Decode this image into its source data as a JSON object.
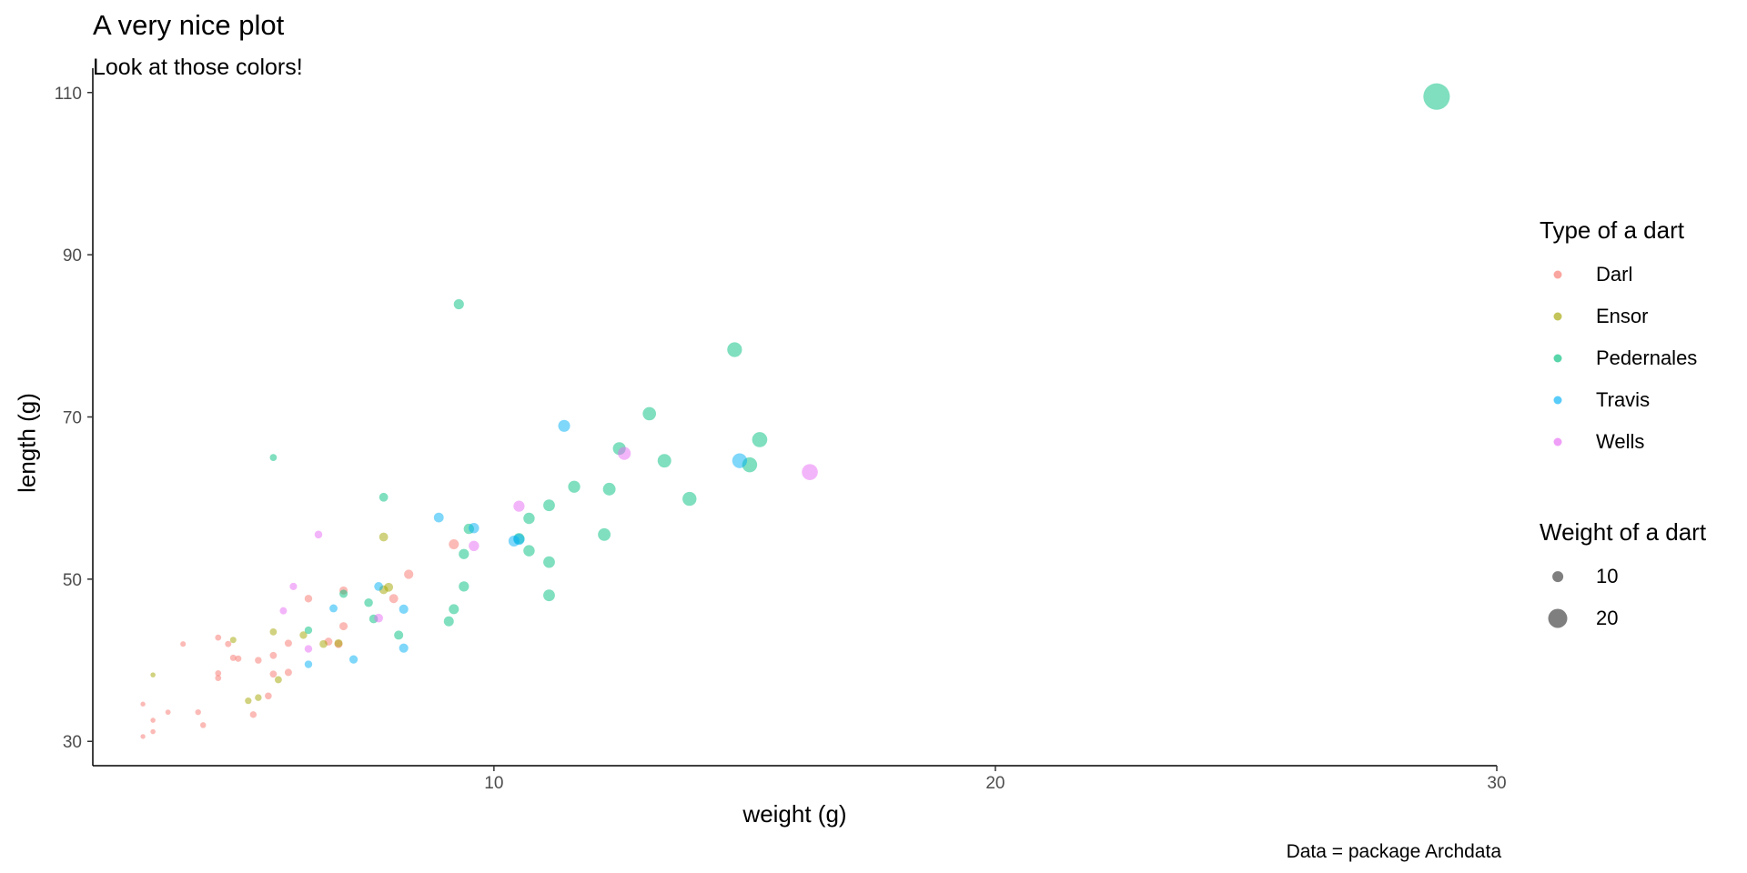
{
  "chart_data": {
    "type": "scatter",
    "title": "A very nice plot",
    "subtitle": "Look at those colors!",
    "xlabel": "weight (g)",
    "ylabel": "length (g)",
    "caption": "Data = package Archdata",
    "xlim": [
      2,
      30
    ],
    "ylim": [
      27,
      113
    ],
    "xticks": [
      10,
      20,
      30
    ],
    "yticks": [
      30,
      50,
      70,
      90,
      110
    ],
    "grid": false,
    "point_alpha": 0.5,
    "legend_placement": "right",
    "color_legend": {
      "title": "Type of a dart",
      "entries": [
        {
          "label": "Darl",
          "color": "#F8766D"
        },
        {
          "label": "Ensor",
          "color": "#A3A500"
        },
        {
          "label": "Pedernales",
          "color": "#00BF7D"
        },
        {
          "label": "Travis",
          "color": "#00B0F6"
        },
        {
          "label": "Wells",
          "color": "#E76BF3"
        }
      ]
    },
    "size_legend": {
      "title": "Weight of a dart",
      "entries": [
        {
          "label": "10",
          "value": 10
        },
        {
          "label": "20",
          "value": 20
        }
      ]
    },
    "series": [
      {
        "name": "Darl",
        "color": "#F8766D",
        "points": [
          [
            3.0,
            30.6
          ],
          [
            3.0,
            34.6
          ],
          [
            3.2,
            31.2
          ],
          [
            3.2,
            32.6
          ],
          [
            3.5,
            33.6
          ],
          [
            3.8,
            42.0
          ],
          [
            4.1,
            33.6
          ],
          [
            4.2,
            32.0
          ],
          [
            4.5,
            37.8
          ],
          [
            4.5,
            38.4
          ],
          [
            4.5,
            42.8
          ],
          [
            4.7,
            42.0
          ],
          [
            4.8,
            40.3
          ],
          [
            4.9,
            40.2
          ],
          [
            5.2,
            33.3
          ],
          [
            5.3,
            40.0
          ],
          [
            5.5,
            35.6
          ],
          [
            5.6,
            38.3
          ],
          [
            5.6,
            40.6
          ],
          [
            5.9,
            38.5
          ],
          [
            5.9,
            42.1
          ],
          [
            6.3,
            47.6
          ],
          [
            6.7,
            42.3
          ],
          [
            6.9,
            42.0
          ],
          [
            7.0,
            44.2
          ],
          [
            7.0,
            48.6
          ],
          [
            8.0,
            47.6
          ],
          [
            8.3,
            50.6
          ],
          [
            9.2,
            54.3
          ]
        ]
      },
      {
        "name": "Ensor",
        "color": "#A3A500",
        "points": [
          [
            3.2,
            38.2
          ],
          [
            4.8,
            42.5
          ],
          [
            5.1,
            35.0
          ],
          [
            5.3,
            35.4
          ],
          [
            5.6,
            43.5
          ],
          [
            5.7,
            37.6
          ],
          [
            6.2,
            43.1
          ],
          [
            6.6,
            42.0
          ],
          [
            6.9,
            42.1
          ],
          [
            7.8,
            55.2
          ],
          [
            7.8,
            48.7
          ],
          [
            7.9,
            49.0
          ]
        ]
      },
      {
        "name": "Pedernales",
        "color": "#00BF7D",
        "points": [
          [
            5.6,
            65.0
          ],
          [
            6.3,
            43.7
          ],
          [
            7.0,
            48.2
          ],
          [
            7.5,
            47.1
          ],
          [
            7.6,
            45.1
          ],
          [
            7.8,
            60.1
          ],
          [
            8.1,
            43.1
          ],
          [
            9.1,
            44.8
          ],
          [
            9.2,
            46.3
          ],
          [
            9.3,
            83.9
          ],
          [
            9.4,
            49.1
          ],
          [
            9.4,
            53.1
          ],
          [
            9.5,
            56.2
          ],
          [
            10.5,
            55.0
          ],
          [
            10.7,
            57.5
          ],
          [
            10.7,
            53.5
          ],
          [
            11.1,
            59.1
          ],
          [
            11.1,
            52.1
          ],
          [
            11.1,
            48.0
          ],
          [
            11.6,
            61.4
          ],
          [
            12.2,
            55.5
          ],
          [
            12.3,
            61.1
          ],
          [
            12.5,
            66.1
          ],
          [
            13.1,
            70.4
          ],
          [
            13.4,
            64.6
          ],
          [
            13.9,
            59.9
          ],
          [
            14.8,
            78.3
          ],
          [
            15.1,
            64.1
          ],
          [
            15.3,
            67.2
          ],
          [
            28.8,
            109.5
          ]
        ]
      },
      {
        "name": "Travis",
        "color": "#00B0F6",
        "points": [
          [
            6.3,
            39.5
          ],
          [
            6.8,
            46.4
          ],
          [
            7.2,
            40.1
          ],
          [
            7.7,
            49.1
          ],
          [
            8.2,
            41.5
          ],
          [
            8.2,
            46.3
          ],
          [
            8.9,
            57.6
          ],
          [
            9.6,
            56.3
          ],
          [
            10.4,
            54.7
          ],
          [
            10.5,
            54.9
          ],
          [
            11.4,
            68.9
          ],
          [
            14.9,
            64.6
          ]
        ]
      },
      {
        "name": "Wells",
        "color": "#E76BF3",
        "points": [
          [
            5.8,
            46.1
          ],
          [
            6.0,
            49.1
          ],
          [
            6.3,
            41.4
          ],
          [
            6.5,
            55.5
          ],
          [
            7.7,
            45.2
          ],
          [
            9.6,
            54.1
          ],
          [
            10.5,
            59.0
          ],
          [
            12.6,
            65.5
          ],
          [
            16.3,
            63.2
          ]
        ]
      }
    ]
  }
}
